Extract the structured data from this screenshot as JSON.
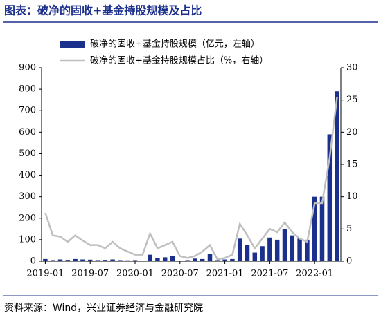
{
  "chart_data": {
    "type": "bar-line",
    "title": "图表：破净的固收+基金持股规模及占比",
    "source": "资料来源：Wind，兴业证券经济与金融研究院",
    "categories": [
      "2019-01",
      null,
      null,
      null,
      null,
      null,
      "2019-07",
      null,
      null,
      null,
      null,
      null,
      "2020-01",
      null,
      null,
      null,
      null,
      null,
      "2020-07",
      null,
      null,
      null,
      null,
      null,
      "2021-01",
      null,
      null,
      null,
      null,
      null,
      "2021-07",
      null,
      null,
      null,
      null,
      null,
      "2022-01",
      null,
      null,
      null
    ],
    "series": [
      {
        "name": "破净的固收+基金持股规模（亿元，左轴）",
        "color": "#1b2f8c",
        "kind": "bar",
        "values": [
          10,
          5,
          8,
          6,
          10,
          8,
          7,
          5,
          6,
          8,
          5,
          4,
          5,
          3,
          30,
          15,
          18,
          25,
          3,
          5,
          12,
          10,
          35,
          5,
          8,
          10,
          105,
          75,
          40,
          70,
          110,
          100,
          150,
          120,
          105,
          100,
          300,
          300,
          590,
          790
        ]
      },
      {
        "name": "破净的固收+基金持股规模占比（%，右轴）",
        "color": "#bfbfbf",
        "kind": "line",
        "axis": "y2",
        "values": [
          7.5,
          4,
          3.8,
          3,
          4,
          3.2,
          2.5,
          2.5,
          2,
          3,
          2,
          1.5,
          1,
          1,
          4.3,
          2,
          2.5,
          3,
          0.8,
          0.5,
          0.8,
          1.5,
          2.5,
          0.3,
          0.5,
          1,
          5.8,
          4,
          2,
          3.5,
          5,
          4.5,
          6,
          4.5,
          3.5,
          3,
          9,
          9,
          16,
          25.5
        ]
      }
    ],
    "ylim": [
      0,
      900
    ],
    "yticks": [
      0,
      100,
      200,
      300,
      400,
      500,
      600,
      700,
      800,
      900
    ],
    "y2lim": [
      0,
      30
    ],
    "y2ticks": [
      0,
      5,
      10,
      15,
      20,
      25,
      30
    ],
    "grid": false
  }
}
